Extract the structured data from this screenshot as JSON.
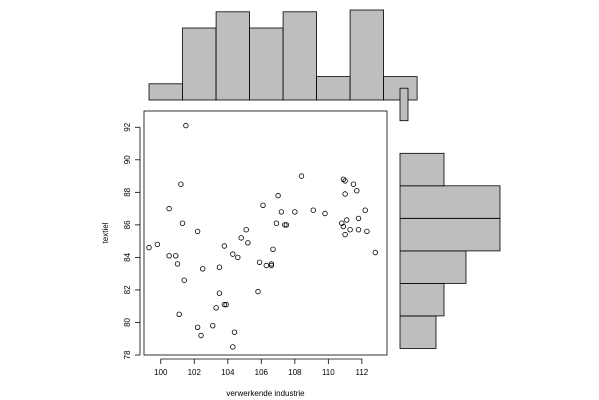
{
  "chart_data": {
    "type": "scatter",
    "xlabel": "verwerkende industrie",
    "ylabel": "textiel",
    "xlim": [
      99,
      113.5
    ],
    "ylim": [
      78,
      93
    ],
    "xticks": [
      "100",
      "102",
      "104",
      "106",
      "108",
      "110",
      "112"
    ],
    "yticks": [
      "78",
      "80",
      "82",
      "84",
      "86",
      "88",
      "90",
      "92"
    ],
    "points": [
      {
        "x": 99.3,
        "y": 84.6
      },
      {
        "x": 99.8,
        "y": 84.8
      },
      {
        "x": 100.5,
        "y": 84.1
      },
      {
        "x": 100.5,
        "y": 87.0
      },
      {
        "x": 100.9,
        "y": 84.1
      },
      {
        "x": 101.0,
        "y": 83.6
      },
      {
        "x": 101.1,
        "y": 80.5
      },
      {
        "x": 101.2,
        "y": 88.5
      },
      {
        "x": 101.3,
        "y": 86.1
      },
      {
        "x": 101.4,
        "y": 82.6
      },
      {
        "x": 101.5,
        "y": 92.1
      },
      {
        "x": 102.2,
        "y": 85.6
      },
      {
        "x": 102.2,
        "y": 79.7
      },
      {
        "x": 102.4,
        "y": 79.2
      },
      {
        "x": 102.5,
        "y": 83.3
      },
      {
        "x": 103.1,
        "y": 79.8
      },
      {
        "x": 103.3,
        "y": 80.9
      },
      {
        "x": 103.5,
        "y": 81.8
      },
      {
        "x": 103.5,
        "y": 83.4
      },
      {
        "x": 103.8,
        "y": 81.1
      },
      {
        "x": 103.9,
        "y": 81.1
      },
      {
        "x": 103.8,
        "y": 84.7
      },
      {
        "x": 104.3,
        "y": 84.2
      },
      {
        "x": 104.3,
        "y": 78.5
      },
      {
        "x": 104.4,
        "y": 79.4
      },
      {
        "x": 104.6,
        "y": 84.0
      },
      {
        "x": 104.8,
        "y": 85.2
      },
      {
        "x": 105.1,
        "y": 85.7
      },
      {
        "x": 105.2,
        "y": 84.9
      },
      {
        "x": 105.8,
        "y": 81.9
      },
      {
        "x": 105.9,
        "y": 83.7
      },
      {
        "x": 106.1,
        "y": 87.2
      },
      {
        "x": 106.3,
        "y": 83.5
      },
      {
        "x": 106.6,
        "y": 83.5
      },
      {
        "x": 106.6,
        "y": 83.6
      },
      {
        "x": 106.7,
        "y": 84.5
      },
      {
        "x": 106.9,
        "y": 86.1
      },
      {
        "x": 107.0,
        "y": 87.8
      },
      {
        "x": 107.2,
        "y": 86.8
      },
      {
        "x": 107.4,
        "y": 86.0
      },
      {
        "x": 107.5,
        "y": 86.0
      },
      {
        "x": 108.0,
        "y": 86.8
      },
      {
        "x": 108.4,
        "y": 89.0
      },
      {
        "x": 109.1,
        "y": 86.9
      },
      {
        "x": 109.8,
        "y": 86.7
      },
      {
        "x": 110.8,
        "y": 86.1
      },
      {
        "x": 110.9,
        "y": 88.8
      },
      {
        "x": 110.9,
        "y": 85.9
      },
      {
        "x": 111.0,
        "y": 88.7
      },
      {
        "x": 111.0,
        "y": 85.4
      },
      {
        "x": 111.0,
        "y": 87.9
      },
      {
        "x": 111.1,
        "y": 86.3
      },
      {
        "x": 111.3,
        "y": 85.7
      },
      {
        "x": 111.5,
        "y": 88.5
      },
      {
        "x": 111.7,
        "y": 88.1
      },
      {
        "x": 111.8,
        "y": 85.7
      },
      {
        "x": 111.8,
        "y": 86.4
      },
      {
        "x": 112.2,
        "y": 86.9
      },
      {
        "x": 112.3,
        "y": 85.6
      },
      {
        "x": 112.8,
        "y": 84.3
      }
    ],
    "x_histogram": {
      "breaks": [
        99,
        100,
        101,
        102,
        103,
        104,
        105,
        106,
        107,
        108,
        109,
        110,
        111,
        112,
        113
      ],
      "relative_heights": [
        0.18,
        0.18,
        0.8,
        0.8,
        0.98,
        0.98,
        0.8,
        0.8,
        0.98,
        0.98,
        0.26,
        0.26,
        1.0,
        1.0,
        0.26,
        0.26
      ],
      "bins": [
        {
          "from": 99.3,
          "to": 101.3,
          "height": 0.18
        },
        {
          "from": 101.3,
          "to": 103.3,
          "height": 0.8
        },
        {
          "from": 103.3,
          "to": 105.3,
          "height": 0.98
        },
        {
          "from": 105.3,
          "to": 107.3,
          "height": 0.8
        },
        {
          "from": 107.3,
          "to": 109.3,
          "height": 0.98
        },
        {
          "from": 109.3,
          "to": 111.3,
          "height": 0.26
        },
        {
          "from": 111.3,
          "to": 113.3,
          "height": 1.0
        },
        {
          "from": 113.3,
          "to": 115.3,
          "height": 0.26
        }
      ]
    },
    "y_histogram": {
      "bins": [
        {
          "from": 78.4,
          "to": 80.4,
          "width": 0.36
        },
        {
          "from": 80.4,
          "to": 82.4,
          "width": 0.44
        },
        {
          "from": 82.4,
          "to": 84.4,
          "width": 0.66
        },
        {
          "from": 84.4,
          "to": 86.4,
          "width": 1.0
        },
        {
          "from": 86.4,
          "to": 88.4,
          "width": 1.0
        },
        {
          "from": 88.4,
          "to": 90.4,
          "width": 0.44
        },
        {
          "from": 90.4,
          "to": 92.4,
          "width": 0.0
        },
        {
          "from": 92.4,
          "to": 94.4,
          "width": 0.08
        }
      ]
    },
    "colors": {
      "bar_fill": "#bebebe",
      "stroke": "#000000"
    }
  }
}
